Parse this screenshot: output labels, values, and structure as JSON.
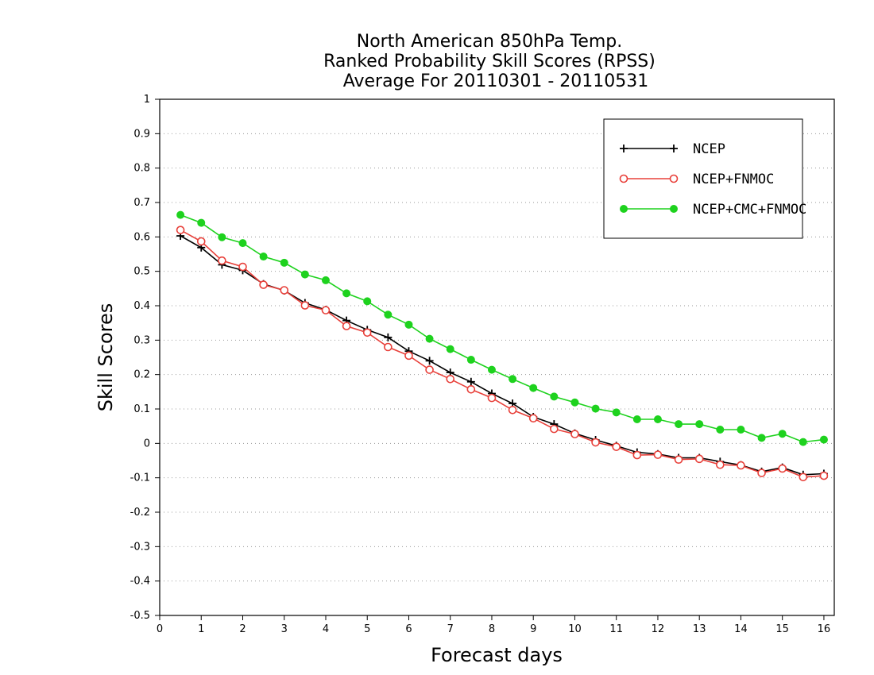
{
  "chart_data": {
    "type": "line",
    "title": [
      "North American 850hPa Temp.",
      "Ranked Probability Skill Scores (RPSS)",
      "Average For 20110301 - 20110531"
    ],
    "xlabel": "Forecast days",
    "ylabel": "Skill Scores",
    "xlim": [
      0,
      16.25
    ],
    "ylim": [
      -0.5,
      1
    ],
    "xticks": [
      0,
      1,
      2,
      3,
      4,
      5,
      6,
      7,
      8,
      9,
      10,
      11,
      12,
      13,
      14,
      15,
      16
    ],
    "xtick_labels": [
      "0",
      "1",
      "2",
      "3",
      "4",
      "5",
      "6",
      "7",
      "8",
      "9",
      "10",
      "11",
      "12",
      "13",
      "14",
      "15",
      "16"
    ],
    "yticks": [
      -0.5,
      -0.4,
      -0.3,
      -0.2,
      -0.1,
      0,
      0.1,
      0.2,
      0.3,
      0.4,
      0.5,
      0.6,
      0.7,
      0.8,
      0.9,
      1
    ],
    "ytick_labels": [
      "-0.5",
      "-0.4",
      "-0.3",
      "-0.2",
      "-0.1",
      "0",
      "0.1",
      "0.2",
      "0.3",
      "0.4",
      "0.5",
      "0.6",
      "0.7",
      "0.8",
      "0.9",
      "1"
    ],
    "grid": "horizontal dotted",
    "legend_position": "top-right",
    "x": [
      0.5,
      1,
      1.5,
      2,
      2.5,
      3,
      3.5,
      4,
      4.5,
      5,
      5.5,
      6,
      6.5,
      7,
      7.5,
      8,
      8.5,
      9,
      9.5,
      10,
      10.5,
      11,
      11.5,
      12,
      12.5,
      13,
      13.5,
      14,
      14.5,
      15,
      15.5,
      16
    ],
    "series": [
      {
        "name": "NCEP",
        "color": "#000000",
        "marker": "plus",
        "values": [
          0.603,
          0.569,
          0.519,
          0.503,
          0.463,
          0.444,
          0.408,
          0.388,
          0.357,
          0.33,
          0.308,
          0.268,
          0.24,
          0.206,
          0.179,
          0.145,
          0.116,
          0.077,
          0.056,
          0.029,
          0.01,
          -0.007,
          -0.026,
          -0.031,
          -0.042,
          -0.042,
          -0.053,
          -0.063,
          -0.082,
          -0.07,
          -0.091,
          -0.088
        ]
      },
      {
        "name": "NCEP+FNMOC",
        "color": "#e8403a",
        "marker": "open-circle",
        "values": [
          0.62,
          0.587,
          0.531,
          0.513,
          0.461,
          0.445,
          0.401,
          0.387,
          0.341,
          0.322,
          0.28,
          0.255,
          0.214,
          0.187,
          0.157,
          0.132,
          0.097,
          0.073,
          0.042,
          0.027,
          0.003,
          -0.01,
          -0.034,
          -0.033,
          -0.047,
          -0.045,
          -0.062,
          -0.064,
          -0.086,
          -0.073,
          -0.098,
          -0.094
        ]
      },
      {
        "name": "NCEP+CMC+FNMOC",
        "color": "#1ed21e",
        "marker": "filled-circle",
        "values": [
          0.664,
          0.641,
          0.599,
          0.582,
          0.543,
          0.525,
          0.491,
          0.474,
          0.436,
          0.413,
          0.374,
          0.345,
          0.304,
          0.274,
          0.243,
          0.214,
          0.187,
          0.161,
          0.136,
          0.119,
          0.101,
          0.09,
          0.07,
          0.07,
          0.056,
          0.056,
          0.04,
          0.04,
          0.016,
          0.028,
          0.004,
          0.011
        ]
      }
    ]
  }
}
